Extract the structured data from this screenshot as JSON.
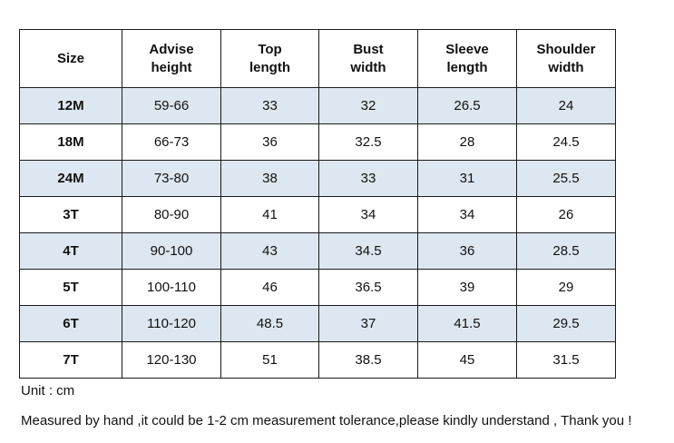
{
  "table": {
    "headers": [
      [
        "Size"
      ],
      [
        "Advise",
        "height"
      ],
      [
        "Top",
        "length"
      ],
      [
        "Bust",
        "width"
      ],
      [
        "Sleeve",
        "length"
      ],
      [
        "Shoulder",
        "width"
      ]
    ],
    "rows": [
      [
        "12M",
        "59-66",
        "33",
        "32",
        "26.5",
        "24"
      ],
      [
        "18M",
        "66-73",
        "36",
        "32.5",
        "28",
        "24.5"
      ],
      [
        "24M",
        "73-80",
        "38",
        "33",
        "31",
        "25.5"
      ],
      [
        "3T",
        "80-90",
        "41",
        "34",
        "34",
        "26"
      ],
      [
        "4T",
        "90-100",
        "43",
        "34.5",
        "36",
        "28.5"
      ],
      [
        "5T",
        "100-110",
        "46",
        "36.5",
        "39",
        "29"
      ],
      [
        "6T",
        "110-120",
        "48.5",
        "37",
        "41.5",
        "29.5"
      ],
      [
        "7T",
        "120-130",
        "51",
        "38.5",
        "45",
        "31.5"
      ]
    ],
    "shaded_row_color": "#dde7f1",
    "border_color": "#1a1a1a"
  },
  "notes": {
    "unit": "Unit : cm",
    "tolerance": "Measured by hand ,it could be 1-2 cm measurement tolerance,please kindly understand , Thank you !"
  }
}
